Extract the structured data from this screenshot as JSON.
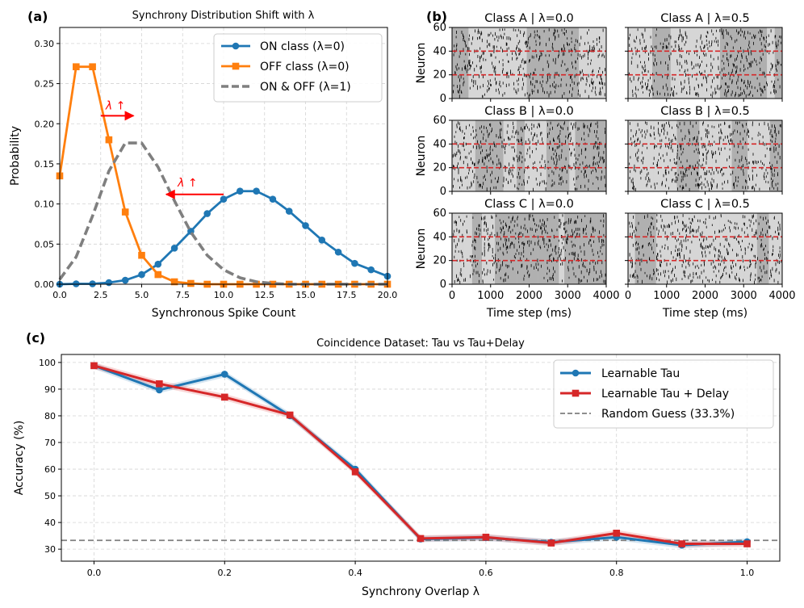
{
  "figure": {
    "panel_labels": [
      "(a)",
      "(b)",
      "(c)"
    ]
  },
  "chart_data": [
    {
      "id": "a",
      "type": "line",
      "title": "Synchrony Distribution Shift with λ",
      "xlabel": "Synchronous Spike Count",
      "ylabel": "Probability",
      "xlim": [
        0,
        20
      ],
      "ylim": [
        0,
        0.32
      ],
      "xticks": [
        "0.0",
        "2.5",
        "5.0",
        "7.5",
        "10.0",
        "12.5",
        "15.0",
        "17.5",
        "20.0"
      ],
      "yticks": [
        "0.00",
        "0.05",
        "0.10",
        "0.15",
        "0.20",
        "0.25",
        "0.30"
      ],
      "grid": true,
      "legend_position": "top-right",
      "series": [
        {
          "name": "ON class (λ=0)",
          "color": "#1f77b4",
          "style": "solid",
          "marker": "circle",
          "x": [
            0,
            1,
            2,
            3,
            4,
            5,
            6,
            7,
            8,
            9,
            10,
            11,
            12,
            13,
            14,
            15,
            16,
            17,
            18,
            19,
            20
          ],
          "y": [
            0.0,
            0.0005,
            0.0005,
            0.002,
            0.005,
            0.012,
            0.025,
            0.045,
            0.066,
            0.088,
            0.106,
            0.116,
            0.116,
            0.106,
            0.091,
            0.073,
            0.055,
            0.04,
            0.026,
            0.018,
            0.01
          ]
        },
        {
          "name": "OFF class (λ=0)",
          "color": "#ff7f0e",
          "style": "solid",
          "marker": "square",
          "x": [
            0,
            1,
            2,
            3,
            4,
            5,
            6,
            7,
            8,
            9,
            10,
            11,
            12,
            13,
            14,
            15,
            16,
            17,
            18,
            19,
            20
          ],
          "y": [
            0.135,
            0.271,
            0.271,
            0.18,
            0.09,
            0.036,
            0.012,
            0.003,
            0.001,
            0.0,
            0.0,
            0.0,
            0.0,
            0.0,
            0.0,
            0.0,
            0.0,
            0.0,
            0.0,
            0.0,
            0.0
          ]
        },
        {
          "name": "ON & OFF (λ=1)",
          "color": "#7f7f7f",
          "style": "dashed",
          "marker": "none",
          "x": [
            0,
            1,
            2,
            3,
            4,
            5,
            6,
            7,
            8,
            9,
            10,
            11,
            12,
            13,
            14,
            15,
            16,
            17,
            18,
            19,
            20
          ],
          "y": [
            0.006,
            0.034,
            0.085,
            0.141,
            0.176,
            0.176,
            0.146,
            0.104,
            0.065,
            0.036,
            0.018,
            0.008,
            0.003,
            0.001,
            0.0,
            0.0,
            0.0,
            0.0,
            0.0,
            0.0,
            0.0
          ]
        }
      ],
      "annotations": [
        {
          "text": "λ ↑",
          "color": "#ff0000",
          "x": 2.8,
          "y": 0.218,
          "arrow_from": [
            2.5,
            0.21
          ],
          "arrow_to": [
            4.5,
            0.21
          ]
        },
        {
          "text": "λ ↑",
          "color": "#ff0000",
          "x": 7.2,
          "y": 0.122,
          "arrow_from": [
            10.0,
            0.112
          ],
          "arrow_to": [
            6.5,
            0.112
          ]
        }
      ]
    },
    {
      "id": "b",
      "type": "raster",
      "xlabel": "Time step (ms)",
      "ylabel": "Neuron",
      "xlim": [
        0,
        4000
      ],
      "ylim": [
        0,
        60
      ],
      "xticks": [
        "0",
        "1000",
        "2000",
        "3000",
        "4000"
      ],
      "yticks": [
        "0",
        "20",
        "40",
        "60"
      ],
      "class_boundaries": [
        20,
        40
      ],
      "subplot_titles": [
        "Class A | λ=0.0",
        "Class A | λ=0.5",
        "Class B | λ=0.0",
        "Class B | λ=0.5",
        "Class C | λ=0.0",
        "Class C | λ=0.5"
      ],
      "spike_color": "#000000",
      "boundary_color": "#d62728"
    },
    {
      "id": "c",
      "type": "line",
      "title": "Coincidence Dataset: Tau vs Tau+Delay",
      "xlabel": "Synchrony Overlap λ",
      "ylabel": "Accuracy (%)",
      "xlim": [
        -0.05,
        1.05
      ],
      "ylim": [
        25.5,
        103
      ],
      "xticks": [
        "0.0",
        "0.2",
        "0.4",
        "0.6",
        "0.8",
        "1.0"
      ],
      "yticks": [
        "30",
        "40",
        "50",
        "60",
        "70",
        "80",
        "90",
        "100"
      ],
      "grid": true,
      "legend_position": "top-right",
      "series": [
        {
          "name": "Learnable Tau",
          "color": "#1f77b4",
          "marker": "circle",
          "x": [
            0.0,
            0.1,
            0.2,
            0.3,
            0.4,
            0.5,
            0.6,
            0.7,
            0.8,
            0.9,
            1.0
          ],
          "y": [
            98.8,
            89.7,
            95.6,
            80.0,
            60.0,
            33.8,
            34.3,
            32.6,
            34.5,
            31.5,
            32.8
          ]
        },
        {
          "name": "Learnable Tau + Delay",
          "color": "#d62728",
          "marker": "square",
          "x": [
            0.0,
            0.1,
            0.2,
            0.3,
            0.4,
            0.5,
            0.6,
            0.7,
            0.8,
            0.9,
            1.0
          ],
          "y": [
            98.8,
            92.0,
            87.0,
            80.3,
            59.0,
            34.0,
            34.5,
            32.3,
            36.0,
            32.0,
            32.0
          ]
        },
        {
          "name": "Random Guess (33.3%)",
          "color": "#7f7f7f",
          "style": "dashed",
          "constant": 33.3
        }
      ]
    }
  ]
}
